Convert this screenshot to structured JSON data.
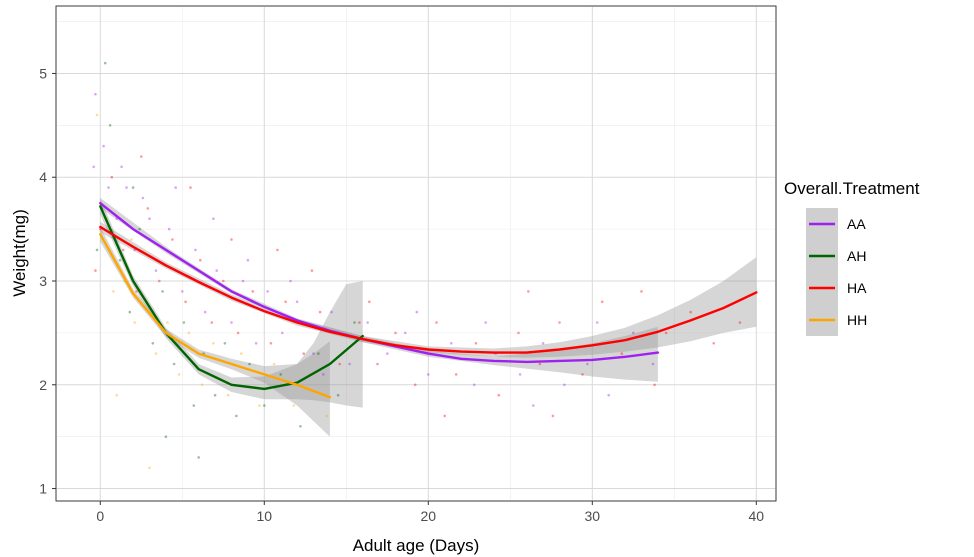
{
  "chart_data": {
    "type": "scatter",
    "title": "",
    "xlabel": "Adult age (Days)",
    "ylabel": "Weight(mg)",
    "xlim": [
      -2.7,
      41.2
    ],
    "ylim": [
      0.88,
      5.65
    ],
    "x_ticks": [
      0,
      10,
      20,
      30,
      40
    ],
    "y_ticks": [
      1,
      2,
      3,
      4,
      5
    ],
    "x_tick_labels": [
      "0",
      "10",
      "20",
      "30",
      "40"
    ],
    "y_tick_labels": [
      "1",
      "2",
      "3",
      "4",
      "5"
    ],
    "grid": true,
    "legend": {
      "title": "Overall.Treatment",
      "position": "right"
    },
    "series": [
      {
        "name": "AA",
        "color": "#a020f0",
        "smooth_x": [
          0,
          2,
          4,
          6,
          8,
          10,
          12,
          14,
          16,
          18,
          20,
          22,
          24,
          26,
          28,
          30,
          32,
          34
        ],
        "smooth_y": [
          3.75,
          3.5,
          3.3,
          3.1,
          2.9,
          2.75,
          2.62,
          2.52,
          2.44,
          2.37,
          2.3,
          2.25,
          2.23,
          2.22,
          2.23,
          2.24,
          2.27,
          2.31
        ],
        "ci_x": [
          0,
          4,
          8,
          12,
          16,
          20,
          24,
          28,
          30,
          32,
          34
        ],
        "ci_lower": [
          3.7,
          3.27,
          2.88,
          2.6,
          2.41,
          2.27,
          2.19,
          2.12,
          2.08,
          2.05,
          2.03
        ],
        "ci_upper": [
          3.8,
          3.33,
          2.92,
          2.64,
          2.47,
          2.33,
          2.27,
          2.34,
          2.4,
          2.47,
          2.56
        ]
      },
      {
        "name": "AH",
        "color": "#006400",
        "smooth_x": [
          0,
          2,
          4,
          6,
          8,
          10,
          12,
          14,
          16
        ],
        "smooth_y": [
          3.72,
          3.0,
          2.5,
          2.15,
          2.0,
          1.96,
          2.02,
          2.2,
          2.47
        ],
        "ci_x": [
          0,
          2,
          4,
          6,
          8,
          10,
          12,
          13,
          14,
          15,
          16
        ],
        "ci_lower": [
          3.64,
          2.95,
          2.45,
          2.1,
          1.93,
          1.86,
          1.86,
          1.85,
          1.83,
          1.8,
          1.78
        ],
        "ci_upper": [
          3.8,
          3.05,
          2.55,
          2.2,
          2.07,
          2.08,
          2.2,
          2.4,
          2.7,
          2.97,
          3.0
        ]
      },
      {
        "name": "HA",
        "color": "#ff0000",
        "smooth_x": [
          0,
          2,
          4,
          6,
          8,
          10,
          12,
          14,
          16,
          18,
          20,
          22,
          24,
          26,
          28,
          30,
          32,
          34,
          36,
          38,
          40
        ],
        "smooth_y": [
          3.52,
          3.33,
          3.15,
          2.99,
          2.84,
          2.71,
          2.6,
          2.51,
          2.44,
          2.38,
          2.34,
          2.32,
          2.31,
          2.31,
          2.34,
          2.38,
          2.43,
          2.51,
          2.62,
          2.74,
          2.89
        ],
        "ci_x": [
          0,
          4,
          8,
          12,
          16,
          20,
          24,
          26,
          28,
          30,
          32,
          34,
          36,
          38,
          40
        ],
        "ci_lower": [
          3.47,
          3.12,
          2.81,
          2.57,
          2.41,
          2.31,
          2.27,
          2.26,
          2.27,
          2.29,
          2.32,
          2.36,
          2.42,
          2.5,
          2.56
        ],
        "ci_upper": [
          3.57,
          3.18,
          2.87,
          2.63,
          2.47,
          2.37,
          2.35,
          2.37,
          2.41,
          2.47,
          2.55,
          2.67,
          2.82,
          3.0,
          3.23
        ]
      },
      {
        "name": "HH",
        "color": "#ffa500",
        "smooth_x": [
          0,
          2,
          4,
          6,
          8,
          10,
          12,
          14
        ],
        "smooth_y": [
          3.45,
          2.88,
          2.5,
          2.3,
          2.2,
          2.1,
          2.0,
          1.88
        ],
        "ci_x": [
          0,
          2,
          4,
          6,
          8,
          10,
          12,
          13,
          14
        ],
        "ci_lower": [
          3.38,
          2.84,
          2.46,
          2.26,
          2.15,
          2.02,
          1.8,
          1.65,
          1.5
        ],
        "ci_upper": [
          3.52,
          2.92,
          2.54,
          2.34,
          2.25,
          2.18,
          2.2,
          2.3,
          2.42
        ]
      }
    ],
    "scatter_points": [
      {
        "x": -0.3,
        "y": 4.8,
        "s": "AA"
      },
      {
        "x": 0.2,
        "y": 4.3,
        "s": "AA"
      },
      {
        "x": 0.5,
        "y": 3.9,
        "s": "AA"
      },
      {
        "x": -0.4,
        "y": 4.1,
        "s": "AA"
      },
      {
        "x": 1.0,
        "y": 3.6,
        "s": "AA"
      },
      {
        "x": 1.6,
        "y": 3.9,
        "s": "AA"
      },
      {
        "x": 2.1,
        "y": 3.3,
        "s": "AA"
      },
      {
        "x": 3.0,
        "y": 3.6,
        "s": "AA"
      },
      {
        "x": 3.4,
        "y": 3.1,
        "s": "AA"
      },
      {
        "x": 4.2,
        "y": 3.5,
        "s": "AA"
      },
      {
        "x": 5.0,
        "y": 2.9,
        "s": "AA"
      },
      {
        "x": 5.8,
        "y": 3.3,
        "s": "AA"
      },
      {
        "x": 6.4,
        "y": 2.7,
        "s": "AA"
      },
      {
        "x": 7.1,
        "y": 3.1,
        "s": "AA"
      },
      {
        "x": 8.0,
        "y": 2.6,
        "s": "AA"
      },
      {
        "x": 8.7,
        "y": 3.0,
        "s": "AA"
      },
      {
        "x": 9.5,
        "y": 2.4,
        "s": "AA"
      },
      {
        "x": 10.2,
        "y": 2.9,
        "s": "AA"
      },
      {
        "x": 11.1,
        "y": 2.5,
        "s": "AA"
      },
      {
        "x": 12.0,
        "y": 2.8,
        "s": "AA"
      },
      {
        "x": 13.0,
        "y": 2.3,
        "s": "AA"
      },
      {
        "x": 14.1,
        "y": 2.7,
        "s": "AA"
      },
      {
        "x": 15.2,
        "y": 2.2,
        "s": "AA"
      },
      {
        "x": 16.3,
        "y": 2.6,
        "s": "AA"
      },
      {
        "x": 17.5,
        "y": 2.3,
        "s": "AA"
      },
      {
        "x": 18.6,
        "y": 2.5,
        "s": "AA"
      },
      {
        "x": 20.0,
        "y": 2.1,
        "s": "AA"
      },
      {
        "x": 21.4,
        "y": 2.4,
        "s": "AA"
      },
      {
        "x": 22.8,
        "y": 2.0,
        "s": "AA"
      },
      {
        "x": 24.1,
        "y": 2.3,
        "s": "AA"
      },
      {
        "x": 25.6,
        "y": 2.1,
        "s": "AA"
      },
      {
        "x": 27.0,
        "y": 2.4,
        "s": "AA"
      },
      {
        "x": 28.3,
        "y": 2.0,
        "s": "AA"
      },
      {
        "x": 29.7,
        "y": 2.2,
        "s": "AA"
      },
      {
        "x": 31.0,
        "y": 1.9,
        "s": "AA"
      },
      {
        "x": 32.5,
        "y": 2.5,
        "s": "AA"
      },
      {
        "x": 33.7,
        "y": 2.2,
        "s": "AA"
      },
      {
        "x": 1.3,
        "y": 4.1,
        "s": "AA"
      },
      {
        "x": 2.6,
        "y": 3.8,
        "s": "AA"
      },
      {
        "x": 4.6,
        "y": 3.9,
        "s": "AA"
      },
      {
        "x": 6.9,
        "y": 3.6,
        "s": "AA"
      },
      {
        "x": 9.0,
        "y": 3.2,
        "s": "AA"
      },
      {
        "x": 11.6,
        "y": 3.0,
        "s": "AA"
      },
      {
        "x": 13.6,
        "y": 2.1,
        "s": "AA"
      },
      {
        "x": 19.3,
        "y": 2.7,
        "s": "AA"
      },
      {
        "x": 23.5,
        "y": 2.6,
        "s": "AA"
      },
      {
        "x": 26.4,
        "y": 1.8,
        "s": "AA"
      },
      {
        "x": 30.3,
        "y": 2.6,
        "s": "AA"
      },
      {
        "x": 0.1,
        "y": 3.7,
        "s": "AH"
      },
      {
        "x": 0.6,
        "y": 4.5,
        "s": "AH"
      },
      {
        "x": -0.2,
        "y": 3.3,
        "s": "AH"
      },
      {
        "x": 1.2,
        "y": 3.2,
        "s": "AH"
      },
      {
        "x": 1.8,
        "y": 2.7,
        "s": "AH"
      },
      {
        "x": 2.4,
        "y": 3.5,
        "s": "AH"
      },
      {
        "x": 3.2,
        "y": 2.4,
        "s": "AH"
      },
      {
        "x": 3.8,
        "y": 2.9,
        "s": "AH"
      },
      {
        "x": 4.5,
        "y": 2.2,
        "s": "AH"
      },
      {
        "x": 5.1,
        "y": 2.6,
        "s": "AH"
      },
      {
        "x": 5.7,
        "y": 1.8,
        "s": "AH"
      },
      {
        "x": 6.3,
        "y": 2.3,
        "s": "AH"
      },
      {
        "x": 7.0,
        "y": 1.9,
        "s": "AH"
      },
      {
        "x": 7.6,
        "y": 2.4,
        "s": "AH"
      },
      {
        "x": 8.3,
        "y": 1.7,
        "s": "AH"
      },
      {
        "x": 9.1,
        "y": 2.2,
        "s": "AH"
      },
      {
        "x": 10.0,
        "y": 1.8,
        "s": "AH"
      },
      {
        "x": 11.0,
        "y": 2.1,
        "s": "AH"
      },
      {
        "x": 12.2,
        "y": 1.6,
        "s": "AH"
      },
      {
        "x": 13.3,
        "y": 2.3,
        "s": "AH"
      },
      {
        "x": 14.5,
        "y": 1.9,
        "s": "AH"
      },
      {
        "x": 15.5,
        "y": 2.6,
        "s": "AH"
      },
      {
        "x": 4.0,
        "y": 1.5,
        "s": "AH"
      },
      {
        "x": 6.0,
        "y": 1.3,
        "s": "AH"
      },
      {
        "x": 2.0,
        "y": 3.9,
        "s": "AH"
      },
      {
        "x": 0.3,
        "y": 5.1,
        "s": "AH"
      },
      {
        "x": 0.0,
        "y": 3.5,
        "s": "HA"
      },
      {
        "x": -0.3,
        "y": 3.1,
        "s": "HA"
      },
      {
        "x": 0.7,
        "y": 4.0,
        "s": "HA"
      },
      {
        "x": 1.4,
        "y": 3.3,
        "s": "HA"
      },
      {
        "x": 2.2,
        "y": 2.9,
        "s": "HA"
      },
      {
        "x": 2.9,
        "y": 3.7,
        "s": "HA"
      },
      {
        "x": 3.6,
        "y": 3.0,
        "s": "HA"
      },
      {
        "x": 4.4,
        "y": 3.4,
        "s": "HA"
      },
      {
        "x": 5.2,
        "y": 2.8,
        "s": "HA"
      },
      {
        "x": 6.1,
        "y": 3.2,
        "s": "HA"
      },
      {
        "x": 6.8,
        "y": 2.6,
        "s": "HA"
      },
      {
        "x": 7.5,
        "y": 3.0,
        "s": "HA"
      },
      {
        "x": 8.4,
        "y": 2.5,
        "s": "HA"
      },
      {
        "x": 9.3,
        "y": 2.9,
        "s": "HA"
      },
      {
        "x": 10.4,
        "y": 2.4,
        "s": "HA"
      },
      {
        "x": 11.3,
        "y": 2.8,
        "s": "HA"
      },
      {
        "x": 12.4,
        "y": 2.3,
        "s": "HA"
      },
      {
        "x": 13.4,
        "y": 2.7,
        "s": "HA"
      },
      {
        "x": 14.6,
        "y": 2.2,
        "s": "HA"
      },
      {
        "x": 15.8,
        "y": 2.6,
        "s": "HA"
      },
      {
        "x": 16.9,
        "y": 2.2,
        "s": "HA"
      },
      {
        "x": 18.0,
        "y": 2.5,
        "s": "HA"
      },
      {
        "x": 19.2,
        "y": 2.0,
        "s": "HA"
      },
      {
        "x": 20.5,
        "y": 2.6,
        "s": "HA"
      },
      {
        "x": 21.7,
        "y": 2.1,
        "s": "HA"
      },
      {
        "x": 22.9,
        "y": 2.4,
        "s": "HA"
      },
      {
        "x": 24.3,
        "y": 1.9,
        "s": "HA"
      },
      {
        "x": 25.5,
        "y": 2.5,
        "s": "HA"
      },
      {
        "x": 26.8,
        "y": 2.2,
        "s": "HA"
      },
      {
        "x": 28.0,
        "y": 2.6,
        "s": "HA"
      },
      {
        "x": 29.4,
        "y": 2.1,
        "s": "HA"
      },
      {
        "x": 30.6,
        "y": 2.8,
        "s": "HA"
      },
      {
        "x": 31.8,
        "y": 2.3,
        "s": "HA"
      },
      {
        "x": 33.0,
        "y": 2.9,
        "s": "HA"
      },
      {
        "x": 34.5,
        "y": 2.5,
        "s": "HA"
      },
      {
        "x": 36.0,
        "y": 2.7,
        "s": "HA"
      },
      {
        "x": 37.4,
        "y": 2.4,
        "s": "HA"
      },
      {
        "x": 39.0,
        "y": 2.6,
        "s": "HA"
      },
      {
        "x": 2.5,
        "y": 4.2,
        "s": "HA"
      },
      {
        "x": 5.5,
        "y": 3.9,
        "s": "HA"
      },
      {
        "x": 8.0,
        "y": 3.4,
        "s": "HA"
      },
      {
        "x": 10.8,
        "y": 3.3,
        "s": "HA"
      },
      {
        "x": 12.9,
        "y": 3.1,
        "s": "HA"
      },
      {
        "x": 16.4,
        "y": 2.8,
        "s": "HA"
      },
      {
        "x": 21.0,
        "y": 1.7,
        "s": "HA"
      },
      {
        "x": 27.6,
        "y": 1.7,
        "s": "HA"
      },
      {
        "x": 33.8,
        "y": 2.0,
        "s": "HA"
      },
      {
        "x": 26.1,
        "y": 2.9,
        "s": "HA"
      },
      {
        "x": 0.4,
        "y": 3.6,
        "s": "HH"
      },
      {
        "x": -0.2,
        "y": 4.6,
        "s": "HH"
      },
      {
        "x": 0.8,
        "y": 2.9,
        "s": "HH"
      },
      {
        "x": 1.5,
        "y": 3.0,
        "s": "HH"
      },
      {
        "x": 2.1,
        "y": 2.6,
        "s": "HH"
      },
      {
        "x": 2.8,
        "y": 2.8,
        "s": "HH"
      },
      {
        "x": 3.4,
        "y": 2.3,
        "s": "HH"
      },
      {
        "x": 4.1,
        "y": 2.6,
        "s": "HH"
      },
      {
        "x": 4.8,
        "y": 2.1,
        "s": "HH"
      },
      {
        "x": 5.4,
        "y": 2.5,
        "s": "HH"
      },
      {
        "x": 6.2,
        "y": 2.0,
        "s": "HH"
      },
      {
        "x": 6.9,
        "y": 2.4,
        "s": "HH"
      },
      {
        "x": 7.8,
        "y": 1.9,
        "s": "HH"
      },
      {
        "x": 8.6,
        "y": 2.3,
        "s": "HH"
      },
      {
        "x": 9.7,
        "y": 1.8,
        "s": "HH"
      },
      {
        "x": 10.6,
        "y": 2.2,
        "s": "HH"
      },
      {
        "x": 11.8,
        "y": 1.8,
        "s": "HH"
      },
      {
        "x": 12.8,
        "y": 2.1,
        "s": "HH"
      },
      {
        "x": 13.8,
        "y": 1.7,
        "s": "HH"
      },
      {
        "x": 1.0,
        "y": 1.9,
        "s": "HH"
      },
      {
        "x": 3.0,
        "y": 1.2,
        "s": "HH"
      },
      {
        "x": 1.9,
        "y": 3.4,
        "s": "HH"
      }
    ]
  }
}
